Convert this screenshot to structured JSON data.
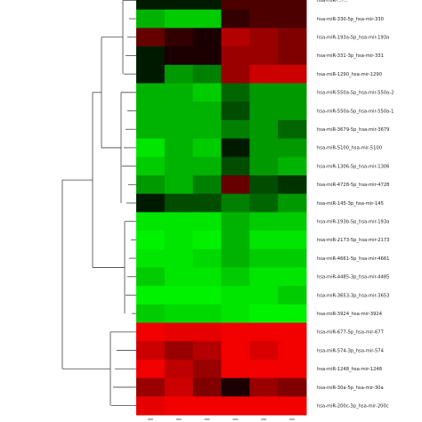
{
  "chart_data": {
    "type": "heatmap",
    "title": "",
    "xlabel": "",
    "ylabel": "",
    "color_scale": {
      "low": "#00ff00",
      "mid": "#000000",
      "high": "#ff0000"
    },
    "columns": [
      "",
      "",
      "",
      "",
      "",
      ""
    ],
    "rows": [
      "hsa-miR-...-...",
      "hsa-miR-330-5p_hsa-mir-330",
      "hsa-miR-193a-5p_hsa-mir-193a",
      "hsa-miR-331-3p_hsa-mir-331",
      "hsa-miR-1290_hsa-mir-1290",
      "hsa-miR-550a-5p_hsa-mir-550a-2",
      "hsa-miR-550a-5p_hsa-mir-550a-1",
      "hsa-miR-3679-5p_hsa-mir-3679",
      "hsa-miR-5100_hsa-mir-5100",
      "hsa-miR-1306-5p_hsa-mir-1306",
      "hsa-miR-4728-5p_hsa-mir-4728",
      "hsa-miR-145-3p_hsa-mir-145",
      "hsa-miR-193b-5p_hsa-mir-193a",
      "hsa-miR-2173-5p_hsa-mir-2173",
      "hsa-miR-4661-5p_hsa-mir-4661",
      "hsa-miR-4485-3p_hsa-mir-4485",
      "hsa-miR-3653-3p_hsa-mir-3653",
      "hsa-miR-3924_hsa-mir-3924",
      "hsa-miR-677-5p_hsa-mir-677",
      "hsa-miR-574-3p_hsa-mir-574",
      "hsa-miR-1248_hsa-mir-1248",
      "hsa-miR-30a-5p_hsa-mir-30a",
      "hsa-miR-200c-3p_hsa-mir-200c"
    ],
    "values": [
      [
        -0.1,
        -0.1,
        -0.1,
        0.3,
        0.3,
        0.3
      ],
      [
        -0.7,
        -0.8,
        -0.8,
        0.2,
        0.3,
        0.3
      ],
      [
        0.4,
        0.2,
        0.1,
        0.7,
        0.6,
        0.5
      ],
      [
        -0.1,
        0.1,
        0.1,
        0.6,
        0.6,
        0.5
      ],
      [
        -0.1,
        -0.6,
        -0.5,
        0.6,
        0.8,
        0.8
      ],
      [
        -0.7,
        -0.7,
        -0.8,
        -0.4,
        -0.6,
        -0.6
      ],
      [
        -0.7,
        -0.7,
        -0.7,
        -0.3,
        -0.6,
        -0.6
      ],
      [
        -0.7,
        -0.7,
        -0.7,
        -0.5,
        -0.6,
        -0.4
      ],
      [
        -0.9,
        -0.7,
        -0.8,
        -0.1,
        -0.6,
        -0.6
      ],
      [
        -0.8,
        -0.7,
        -0.7,
        -0.3,
        -0.6,
        -0.7
      ],
      [
        -0.6,
        -0.7,
        -0.5,
        0.4,
        -0.3,
        -0.2
      ],
      [
        -0.1,
        -0.3,
        -0.3,
        -0.5,
        -0.4,
        -0.6
      ],
      [
        -0.9,
        -0.9,
        -0.9,
        -0.7,
        -0.8,
        -0.8
      ],
      [
        -0.95,
        -0.9,
        -0.95,
        -0.7,
        -0.9,
        -0.9
      ],
      [
        -0.9,
        -0.9,
        -0.85,
        -0.7,
        -0.8,
        -0.8
      ],
      [
        -0.8,
        -0.9,
        -0.9,
        -0.8,
        -0.9,
        -0.9
      ],
      [
        -0.95,
        -0.95,
        -0.95,
        -0.9,
        -0.9,
        -0.8
      ],
      [
        -0.8,
        -0.85,
        -0.85,
        -0.9,
        -0.95,
        -0.95
      ],
      [
        0.95,
        0.9,
        0.9,
        0.95,
        0.95,
        0.95
      ],
      [
        0.8,
        0.6,
        0.7,
        0.95,
        0.85,
        0.95
      ],
      [
        0.95,
        0.75,
        0.6,
        0.95,
        0.95,
        0.95
      ],
      [
        0.6,
        0.8,
        0.5,
        0.1,
        0.6,
        0.5
      ],
      [
        0.9,
        0.95,
        0.95,
        0.95,
        0.95,
        0.95
      ]
    ],
    "dendrogram": {
      "groups": [
        [
          0,
          1,
          2,
          3,
          4
        ],
        [
          5,
          6,
          7,
          8,
          9,
          10,
          11
        ],
        [
          12,
          13,
          14,
          15,
          16,
          17
        ],
        [
          18,
          19,
          20,
          21,
          22
        ]
      ]
    },
    "legend": "none",
    "grid": false
  }
}
